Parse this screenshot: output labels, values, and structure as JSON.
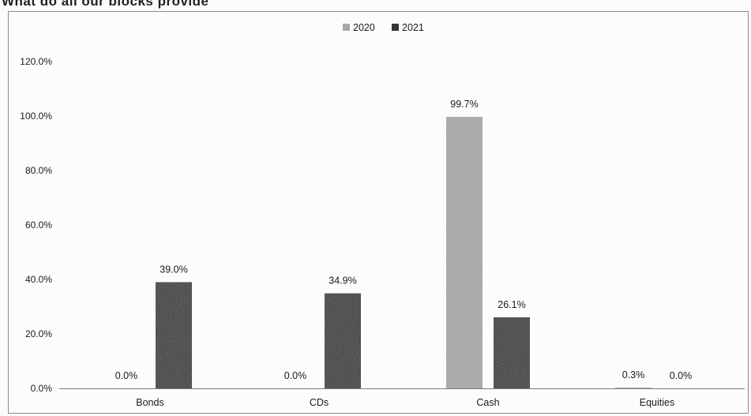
{
  "header": {
    "text": "What do all our blocks provide"
  },
  "chart_data": {
    "type": "bar",
    "categories": [
      "Bonds",
      "CDs",
      "Cash",
      "Equities"
    ],
    "series": [
      {
        "name": "2020",
        "values": [
          0.0,
          0.0,
          99.7,
          0.3
        ],
        "labels": [
          "0.0%",
          "0.0%",
          "99.7%",
          "0.3%"
        ],
        "color": "#a7a7a7"
      },
      {
        "name": "2021",
        "values": [
          39.0,
          34.9,
          26.1,
          0.0
        ],
        "labels": [
          "39.0%",
          "34.9%",
          "26.1%",
          "0.0%"
        ],
        "color": "#353535"
      }
    ],
    "ylim": [
      0,
      120
    ],
    "yticks": [
      0,
      20,
      40,
      60,
      80,
      100,
      120
    ],
    "ytick_labels": [
      "0.0%",
      "20.0%",
      "40.0%",
      "60.0%",
      "80.0%",
      "100.0%",
      "120.0%"
    ],
    "title": "",
    "xlabel": "",
    "ylabel": "",
    "grid": false,
    "legend_position": "top-center"
  }
}
